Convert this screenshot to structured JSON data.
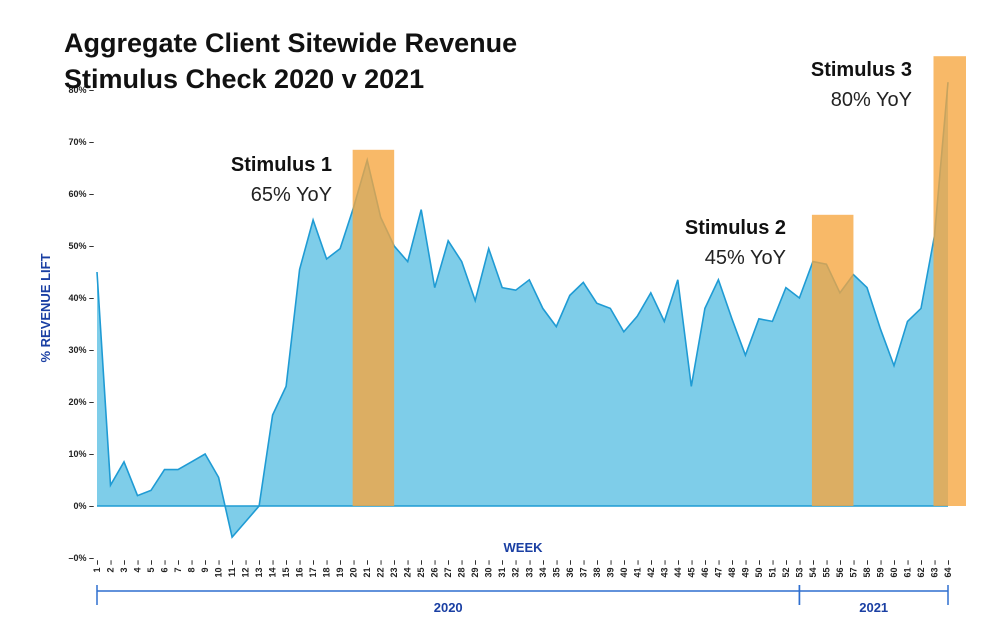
{
  "chart_data": {
    "type": "area",
    "title_lines": [
      "Aggregate Client Sitewide Revenue",
      "Stimulus Check 2020 v 2021"
    ],
    "xlabel": "WEEK",
    "ylabel": "% REVENUE LIFT",
    "ylim": [
      -0.1,
      0.8
    ],
    "yticks": [
      {
        "value": 0.8,
        "label": "80% –"
      },
      {
        "value": 0.7,
        "label": "70% –"
      },
      {
        "value": 0.6,
        "label": "60% –"
      },
      {
        "value": 0.5,
        "label": "50% –"
      },
      {
        "value": 0.4,
        "label": "40% –"
      },
      {
        "value": 0.3,
        "label": "30% –"
      },
      {
        "value": 0.2,
        "label": "20% –"
      },
      {
        "value": 0.1,
        "label": "10% –"
      },
      {
        "value": 0.0,
        "label": "0% –"
      },
      {
        "value": -0.1,
        "label": "–0% –"
      }
    ],
    "x": [
      1,
      2,
      3,
      4,
      5,
      6,
      7,
      8,
      9,
      10,
      11,
      12,
      13,
      14,
      15,
      16,
      17,
      18,
      19,
      20,
      21,
      22,
      23,
      24,
      25,
      26,
      27,
      28,
      29,
      30,
      31,
      32,
      33,
      34,
      35,
      36,
      37,
      38,
      39,
      40,
      41,
      42,
      43,
      44,
      45,
      46,
      47,
      48,
      49,
      50,
      51,
      52,
      53,
      54,
      55,
      56,
      57,
      58,
      59,
      60,
      61,
      62,
      63,
      64
    ],
    "x_tick_labels": [
      "1 –",
      "2 –",
      "3 –",
      "4 –",
      "5 –",
      "6 –",
      "7 –",
      "8 –",
      "9 –",
      "10 –",
      "11 –",
      "12 –",
      "13 –",
      "14 –",
      "15 –",
      "16 –",
      "17 –",
      "18 –",
      "19 –",
      "20 –",
      "21 –",
      "22 –",
      "23 –",
      "24 –",
      "25 –",
      "26 –",
      "27 –",
      "28 –",
      "29 –",
      "30 –",
      "31 –",
      "32 –",
      "33 –",
      "34 –",
      "35 –",
      "36 –",
      "37 –",
      "38 –",
      "39 –",
      "40 –",
      "41 –",
      "42 –",
      "43 –",
      "44 –",
      "45 –",
      "46 –",
      "47 –",
      "48 –",
      "49 –",
      "50 –",
      "51 –",
      "52 –",
      "53 –",
      "54 –",
      "55 –",
      "56 –",
      "57 –",
      "58 –",
      "59 –",
      "60 –",
      "61 –",
      "62 –",
      "63 –",
      "64 –"
    ],
    "values": [
      0.45,
      0.04,
      0.085,
      0.02,
      0.03,
      0.07,
      0.07,
      0.085,
      0.1,
      0.055,
      -0.06,
      -0.03,
      0.0,
      0.175,
      0.23,
      0.455,
      0.55,
      0.475,
      0.495,
      0.575,
      0.665,
      0.555,
      0.5,
      0.47,
      0.57,
      0.42,
      0.51,
      0.47,
      0.395,
      0.495,
      0.42,
      0.415,
      0.435,
      0.38,
      0.345,
      0.405,
      0.43,
      0.39,
      0.38,
      0.335,
      0.365,
      0.41,
      0.355,
      0.435,
      0.23,
      0.38,
      0.435,
      0.36,
      0.29,
      0.36,
      0.355,
      0.42,
      0.4,
      0.47,
      0.465,
      0.41,
      0.445,
      0.42,
      0.34,
      0.27,
      0.355,
      0.38,
      0.52,
      0.815
    ],
    "annotations": [
      {
        "name": "Stimulus 1",
        "value": "65% YoY",
        "week_start": 20,
        "week_end": 23,
        "top": 0.685
      },
      {
        "name": "Stimulus 2",
        "value": "45% YoY",
        "week_start": 54,
        "week_end": 57,
        "top": 0.56
      },
      {
        "name": "Stimulus 3",
        "value": "80% YoY",
        "week_start": 63,
        "week_end": 64,
        "top": 0.865
      }
    ],
    "year_groups": [
      {
        "label": "2020",
        "start": 1,
        "end": 53
      },
      {
        "label": "2021",
        "start": 53,
        "end": 64
      }
    ],
    "colors": {
      "area_fill": "#7ecde9",
      "area_stroke": "#1f9bd4",
      "highlight": "#f6a53d",
      "year_axis": "#2f6fcf"
    }
  }
}
